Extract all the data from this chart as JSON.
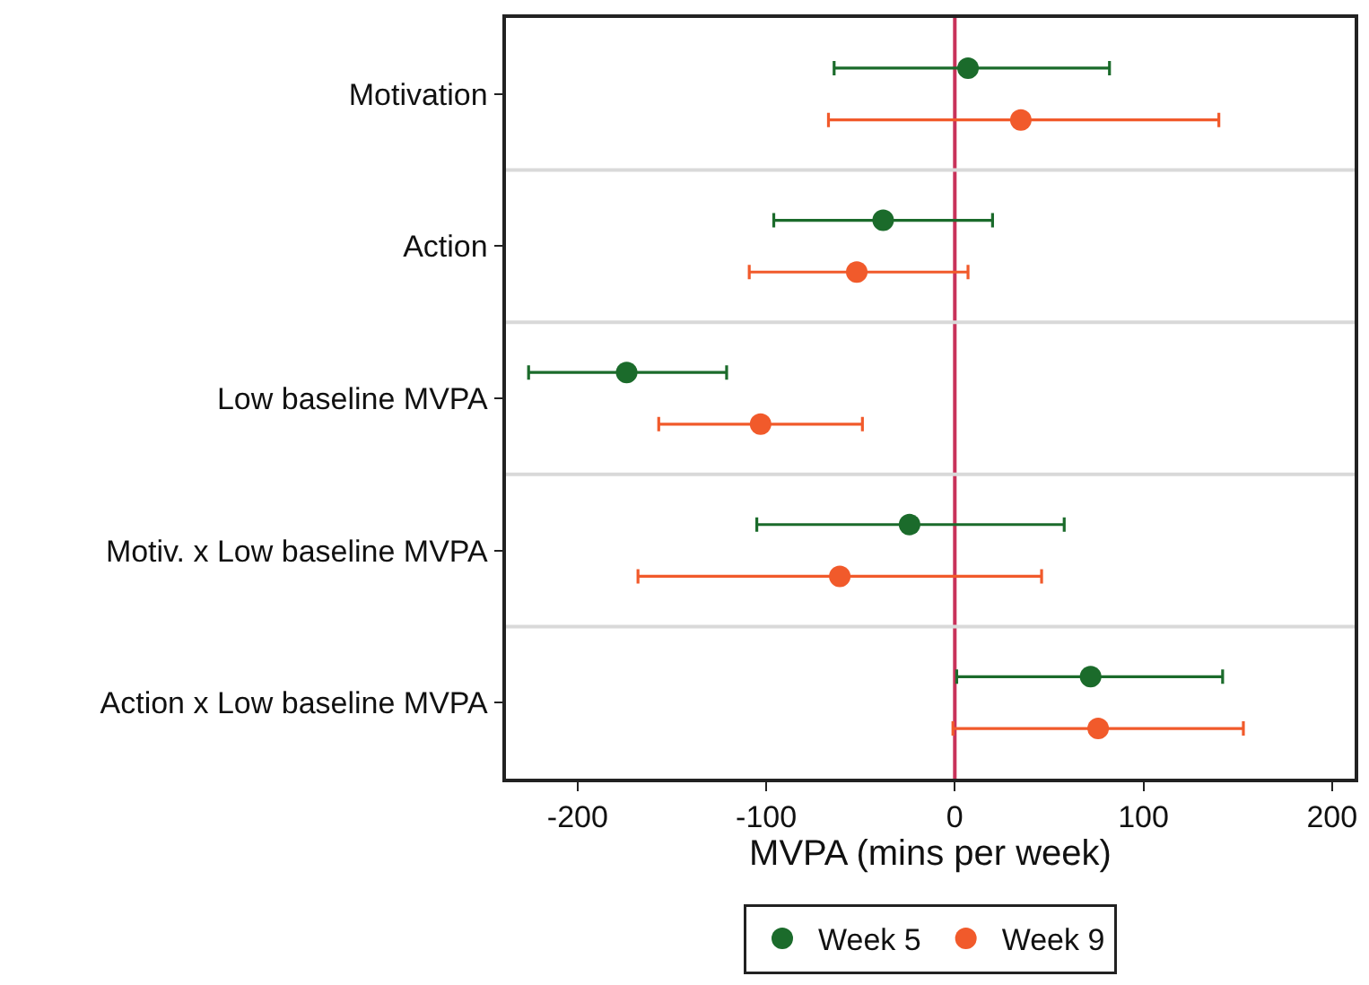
{
  "chart_data": {
    "type": "scatter",
    "orientation": "horizontal",
    "categories": [
      "Motivation",
      "Action",
      "Low baseline MVPA",
      "Motiv. x Low baseline MVPA",
      "Action x Low baseline MVPA"
    ],
    "series": [
      {
        "name": "Week 5",
        "color": "#1b6b2b",
        "values": [
          7,
          -38,
          -174,
          -24,
          72
        ],
        "errors": [
          [
            -64,
            82
          ],
          [
            -96,
            20
          ],
          [
            -226,
            -121
          ],
          [
            -105,
            58
          ],
          [
            1,
            142
          ]
        ]
      },
      {
        "name": "Week 9",
        "color": "#f15a2b",
        "values": [
          35,
          -52,
          -103,
          -61,
          76
        ],
        "errors": [
          [
            -67,
            140
          ],
          [
            -109,
            7
          ],
          [
            -157,
            -49
          ],
          [
            -168,
            46
          ],
          [
            -1,
            153
          ]
        ]
      }
    ],
    "xlabel": "MVPA (mins per week)",
    "xlim": [
      -238,
      212
    ],
    "xticks": [
      -200,
      -100,
      0,
      100,
      200
    ],
    "ref_lines": [
      {
        "axis": "x",
        "value": 0,
        "color": "#c8325a"
      }
    ],
    "grid": "y",
    "marker": "circle",
    "legend": "bottom"
  }
}
